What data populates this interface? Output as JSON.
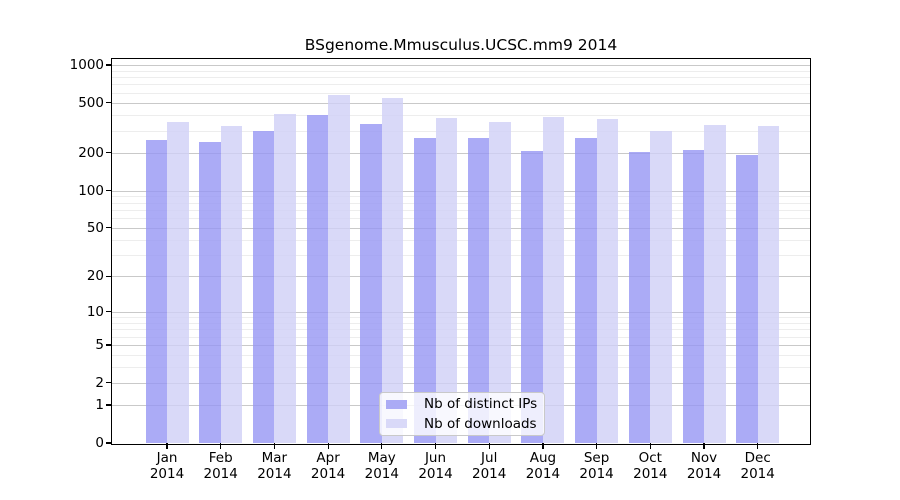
{
  "chart_data": {
    "type": "bar",
    "title": "BSgenome.Mmusculus.UCSC.mm9 2014",
    "x_year": "2014",
    "categories": [
      "Jan",
      "Feb",
      "Mar",
      "Apr",
      "May",
      "Jun",
      "Jul",
      "Aug",
      "Sep",
      "Oct",
      "Nov",
      "Dec"
    ],
    "series": [
      {
        "name": "Nb of distinct IPs",
        "color": "rgba(150,150,244,0.8)",
        "swatch_color": "#ababf5",
        "values": [
          253,
          246,
          296,
          398,
          337,
          262,
          262,
          208,
          262,
          205,
          212,
          193
        ]
      },
      {
        "name": "Nb of downloads",
        "color": "rgba(208,208,246,0.8)",
        "swatch_color": "#d9d9f8",
        "values": [
          350,
          330,
          410,
          574,
          549,
          380,
          352,
          385,
          374,
          300,
          335,
          329
        ]
      }
    ],
    "y_axis": {
      "scale": "log10(1+value)",
      "tick_labels": [
        1000,
        500,
        200,
        100,
        50,
        20,
        10,
        5,
        2,
        1,
        0
      ],
      "minor_gridlines": [
        3,
        4,
        6,
        7,
        8,
        9,
        30,
        40,
        60,
        70,
        80,
        90,
        300,
        400,
        600,
        700,
        800,
        900
      ],
      "ylim_top": 1120
    },
    "grid": true,
    "legend_position": "inside-bottom-center",
    "bar_group": "pair-side-by-side"
  },
  "colors": {
    "axis": "#000000",
    "major_grid": "#c9c9c9",
    "minor_grid": "#ededed",
    "background": "#ffffff"
  }
}
